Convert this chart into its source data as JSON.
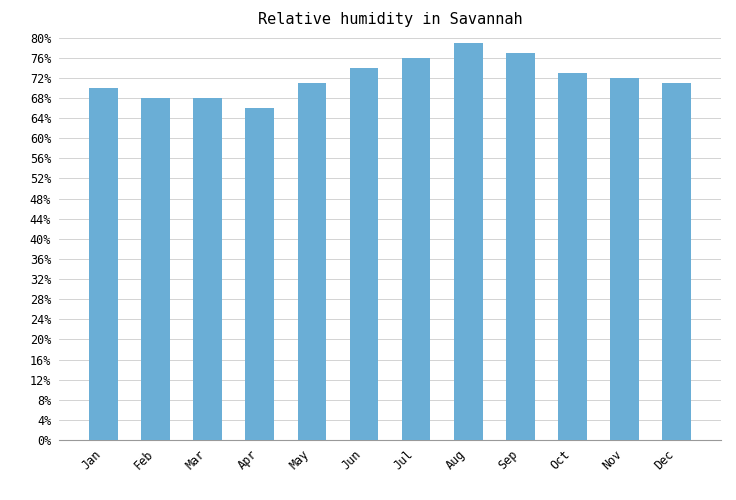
{
  "title": "Relative humidity in Savannah",
  "months": [
    "Jan",
    "Feb",
    "Mar",
    "Apr",
    "May",
    "Jun",
    "Jul",
    "Aug",
    "Sep",
    "Oct",
    "Nov",
    "Dec"
  ],
  "values": [
    70,
    68,
    68,
    66,
    71,
    74,
    76,
    79,
    77,
    73,
    72,
    71
  ],
  "bar_color": "#6aaed6",
  "ylim": [
    0,
    80
  ],
  "ytick_step": 4,
  "background_color": "#ffffff",
  "grid_color": "#cccccc",
  "title_fontsize": 11,
  "tick_fontsize": 8.5,
  "font_family": "monospace",
  "bar_width": 0.55,
  "x_label_rotation": 45,
  "figsize": [
    7.36,
    5.0
  ],
  "dpi": 100
}
